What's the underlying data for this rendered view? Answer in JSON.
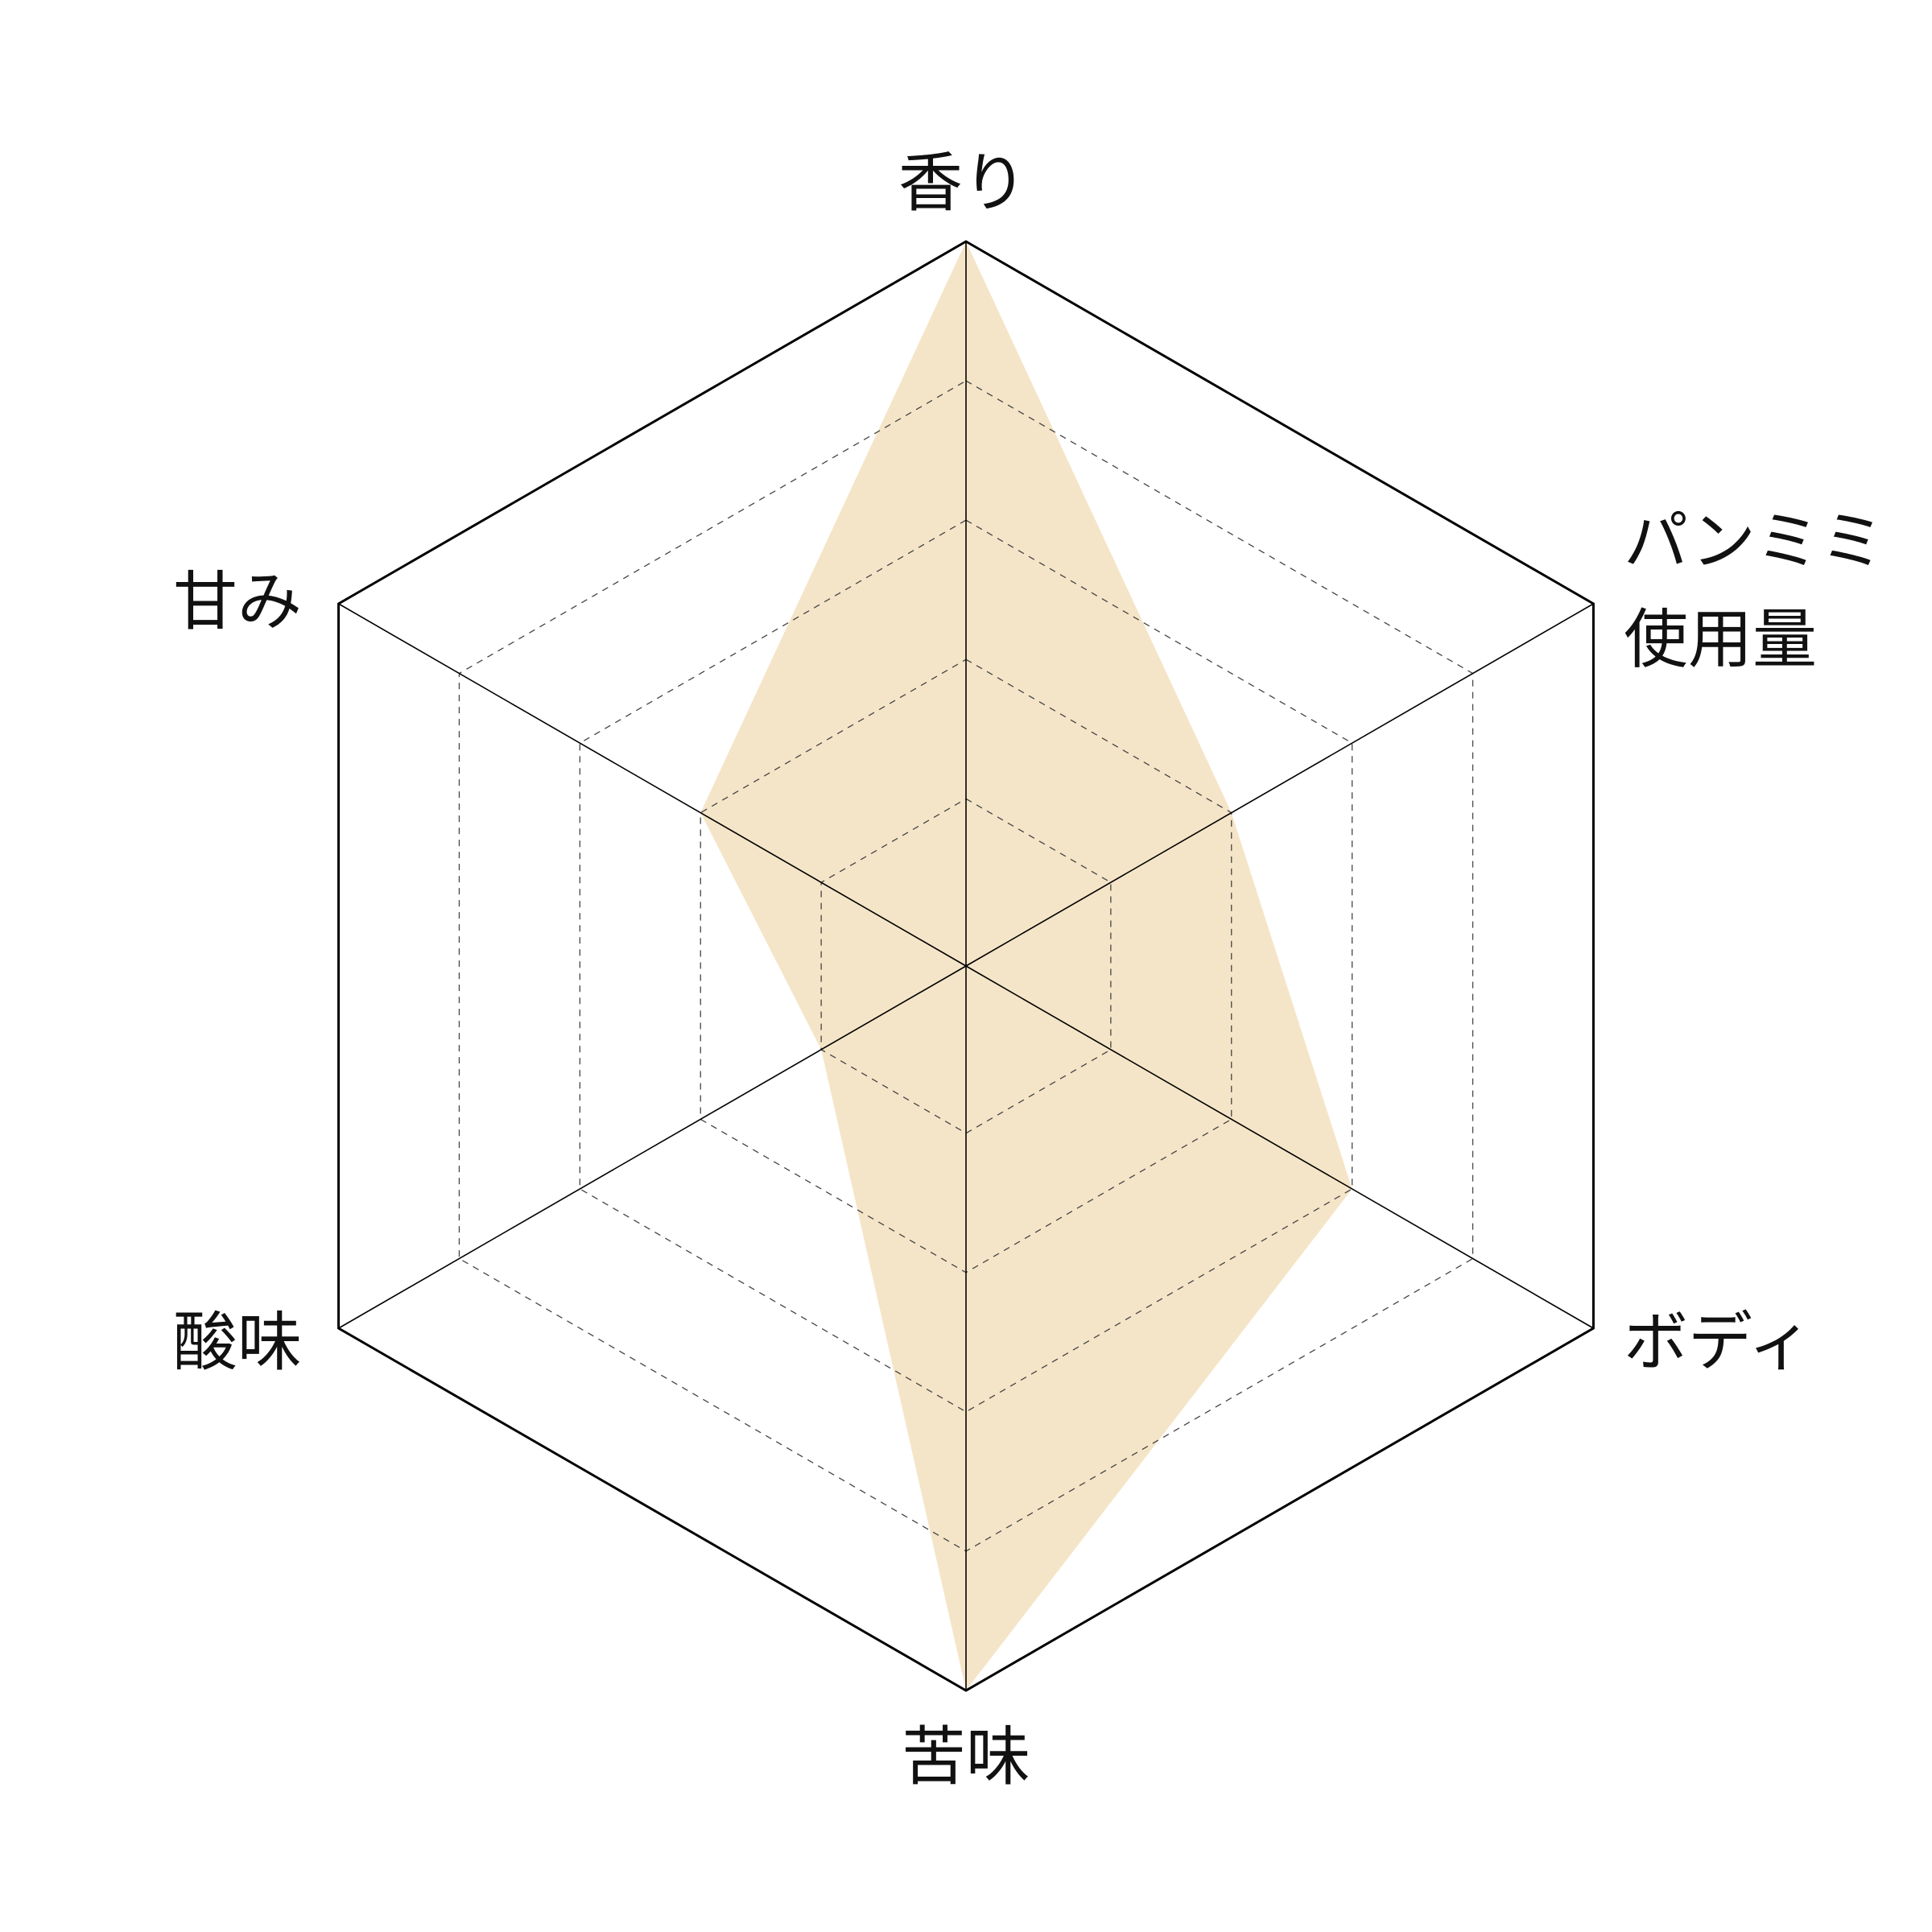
{
  "chart_data": {
    "type": "radar",
    "title": "",
    "axes": [
      {
        "label": [
          "香り"
        ],
        "value": 5
      },
      {
        "label": [
          "パンミミ",
          "使用量"
        ],
        "value": 2
      },
      {
        "label": [
          "ボディ"
        ],
        "value": 3
      },
      {
        "label": [
          "苦味"
        ],
        "value": 5
      },
      {
        "label": [
          "酸味"
        ],
        "value": 1
      },
      {
        "label": [
          "甘み"
        ],
        "value": 2
      }
    ],
    "range": [
      0,
      5
    ],
    "levels": 5,
    "grid": true,
    "grid_style": "dashed inner rings, solid outer ring",
    "fill_color": "#f5e5c8"
  }
}
